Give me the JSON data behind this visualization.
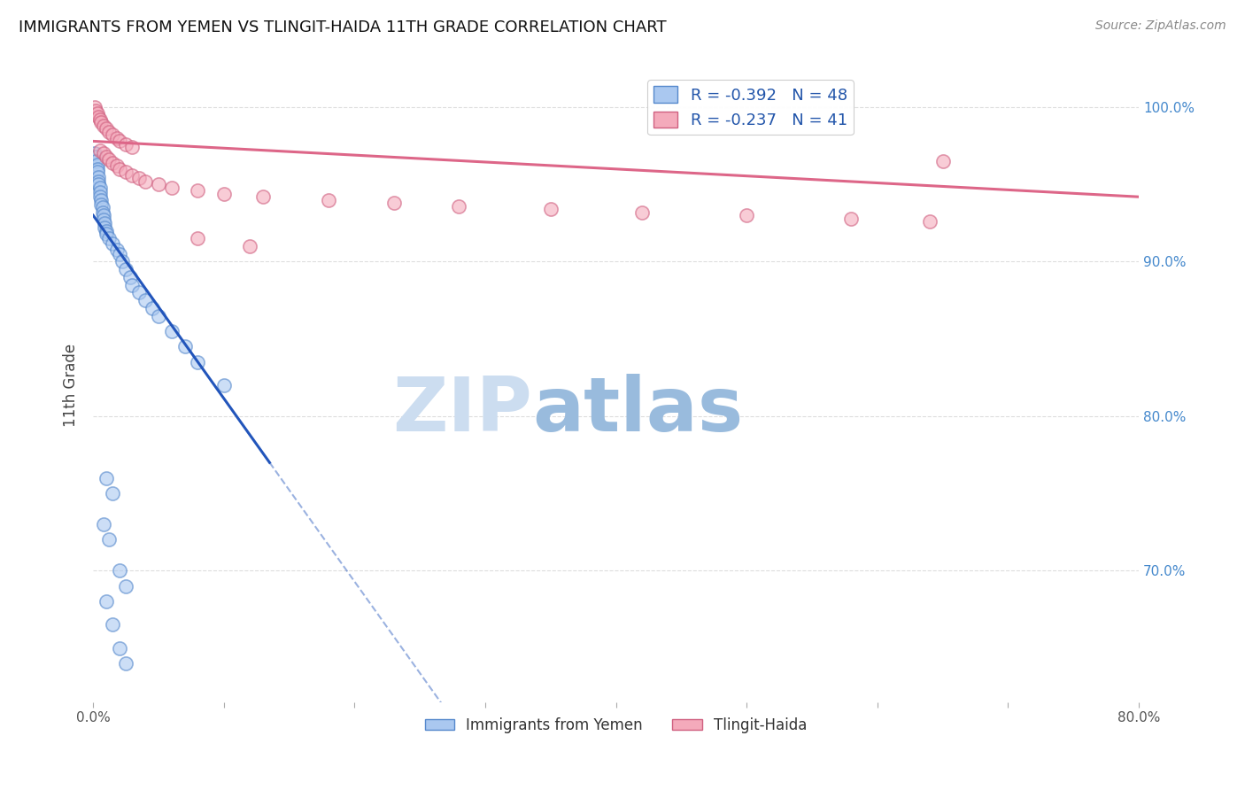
{
  "title": "IMMIGRANTS FROM YEMEN VS TLINGIT-HAIDA 11TH GRADE CORRELATION CHART",
  "source": "Source: ZipAtlas.com",
  "ylabel": "11th Grade",
  "ytick_labels": [
    "100.0%",
    "90.0%",
    "80.0%",
    "70.0%"
  ],
  "ytick_values": [
    1.0,
    0.9,
    0.8,
    0.7
  ],
  "xmin": 0.0,
  "xmax": 0.8,
  "ymin": 0.615,
  "ymax": 1.025,
  "legend_blue_r": "R = -0.392",
  "legend_blue_n": "N = 48",
  "legend_pink_r": "R = -0.237",
  "legend_pink_n": "N = 41",
  "legend_label_blue": "Immigrants from Yemen",
  "legend_label_pink": "Tlingit-Haida",
  "blue_fill": "#aac8f0",
  "pink_fill": "#f4aabb",
  "blue_edge": "#5588cc",
  "pink_edge": "#d06080",
  "blue_line_color": "#2255bb",
  "pink_line_color": "#dd6688",
  "blue_scatter": [
    [
      0.001,
      0.97
    ],
    [
      0.002,
      0.968
    ],
    [
      0.002,
      0.965
    ],
    [
      0.003,
      0.963
    ],
    [
      0.003,
      0.96
    ],
    [
      0.003,
      0.958
    ],
    [
      0.004,
      0.955
    ],
    [
      0.004,
      0.952
    ],
    [
      0.004,
      0.95
    ],
    [
      0.005,
      0.948
    ],
    [
      0.005,
      0.945
    ],
    [
      0.005,
      0.942
    ],
    [
      0.006,
      0.94
    ],
    [
      0.006,
      0.937
    ],
    [
      0.007,
      0.935
    ],
    [
      0.007,
      0.932
    ],
    [
      0.008,
      0.93
    ],
    [
      0.008,
      0.927
    ],
    [
      0.009,
      0.925
    ],
    [
      0.009,
      0.922
    ],
    [
      0.01,
      0.92
    ],
    [
      0.01,
      0.918
    ],
    [
      0.012,
      0.915
    ],
    [
      0.015,
      0.912
    ],
    [
      0.018,
      0.908
    ],
    [
      0.02,
      0.905
    ],
    [
      0.022,
      0.9
    ],
    [
      0.025,
      0.895
    ],
    [
      0.028,
      0.89
    ],
    [
      0.03,
      0.885
    ],
    [
      0.035,
      0.88
    ],
    [
      0.04,
      0.875
    ],
    [
      0.045,
      0.87
    ],
    [
      0.05,
      0.865
    ],
    [
      0.06,
      0.855
    ],
    [
      0.07,
      0.845
    ],
    [
      0.08,
      0.835
    ],
    [
      0.1,
      0.82
    ],
    [
      0.01,
      0.76
    ],
    [
      0.015,
      0.75
    ],
    [
      0.008,
      0.73
    ],
    [
      0.012,
      0.72
    ],
    [
      0.02,
      0.7
    ],
    [
      0.025,
      0.69
    ],
    [
      0.01,
      0.68
    ],
    [
      0.015,
      0.665
    ],
    [
      0.02,
      0.65
    ],
    [
      0.025,
      0.64
    ]
  ],
  "pink_scatter": [
    [
      0.001,
      1.0
    ],
    [
      0.002,
      0.998
    ],
    [
      0.003,
      0.996
    ],
    [
      0.004,
      0.994
    ],
    [
      0.005,
      0.992
    ],
    [
      0.006,
      0.99
    ],
    [
      0.008,
      0.988
    ],
    [
      0.01,
      0.986
    ],
    [
      0.012,
      0.984
    ],
    [
      0.015,
      0.982
    ],
    [
      0.018,
      0.98
    ],
    [
      0.02,
      0.978
    ],
    [
      0.025,
      0.976
    ],
    [
      0.03,
      0.974
    ],
    [
      0.005,
      0.972
    ],
    [
      0.008,
      0.97
    ],
    [
      0.01,
      0.968
    ],
    [
      0.012,
      0.966
    ],
    [
      0.015,
      0.964
    ],
    [
      0.018,
      0.962
    ],
    [
      0.02,
      0.96
    ],
    [
      0.025,
      0.958
    ],
    [
      0.03,
      0.956
    ],
    [
      0.035,
      0.954
    ],
    [
      0.04,
      0.952
    ],
    [
      0.05,
      0.95
    ],
    [
      0.06,
      0.948
    ],
    [
      0.08,
      0.946
    ],
    [
      0.1,
      0.944
    ],
    [
      0.13,
      0.942
    ],
    [
      0.18,
      0.94
    ],
    [
      0.23,
      0.938
    ],
    [
      0.28,
      0.936
    ],
    [
      0.35,
      0.934
    ],
    [
      0.42,
      0.932
    ],
    [
      0.5,
      0.93
    ],
    [
      0.58,
      0.928
    ],
    [
      0.64,
      0.926
    ],
    [
      0.08,
      0.915
    ],
    [
      0.12,
      0.91
    ],
    [
      0.65,
      0.965
    ]
  ],
  "blue_line_x0": 0.0,
  "blue_line_y0": 0.93,
  "blue_line_x1": 0.135,
  "blue_line_y1": 0.77,
  "blue_line_solid_end": 0.135,
  "pink_line_x0": 0.0,
  "pink_line_y0": 0.978,
  "pink_line_x1": 0.8,
  "pink_line_y1": 0.942,
  "watermark_zip": "ZIP",
  "watermark_atlas": "atlas",
  "watermark_color_zip": "#ccddf0",
  "watermark_color_atlas": "#99bbdd",
  "bg_color": "#ffffff",
  "grid_color": "#dddddd"
}
